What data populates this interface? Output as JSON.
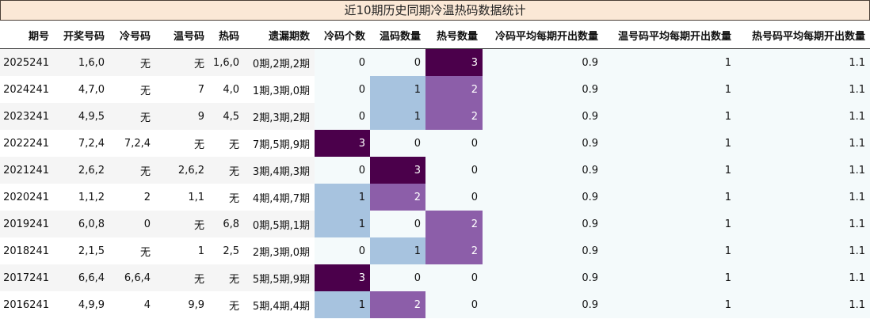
{
  "chart_data": {
    "type": "table",
    "title": "近10期历史同期冷温热码数据统计",
    "columns": [
      "期号",
      "开奖号码",
      "冷号码",
      "温号码",
      "热码",
      "遗漏期数",
      "冷码个数",
      "温码数量",
      "热号数量",
      "冷码平均每期开出数量",
      "温号码平均每期开出数量",
      "热号码平均每期开出数量"
    ],
    "rows": [
      [
        "2025241",
        "1,6,0",
        "无",
        "无",
        "1,6,0",
        "0期,2期,2期",
        0,
        0,
        3,
        "0.9",
        "1",
        "1.1"
      ],
      [
        "2024241",
        "4,7,0",
        "无",
        "7",
        "4,0",
        "1期,3期,0期",
        0,
        1,
        2,
        "0.9",
        "1",
        "1.1"
      ],
      [
        "2023241",
        "4,9,5",
        "无",
        "9",
        "4,5",
        "2期,3期,2期",
        0,
        1,
        2,
        "0.9",
        "1",
        "1.1"
      ],
      [
        "2022241",
        "7,2,4",
        "7,2,4",
        "无",
        "无",
        "7期,5期,9期",
        3,
        0,
        0,
        "0.9",
        "1",
        "1.1"
      ],
      [
        "2021241",
        "2,6,2",
        "无",
        "2,6,2",
        "无",
        "3期,4期,3期",
        0,
        3,
        0,
        "0.9",
        "1",
        "1.1"
      ],
      [
        "2020241",
        "1,1,2",
        "2",
        "1,1",
        "无",
        "4期,4期,7期",
        1,
        2,
        0,
        "0.9",
        "1",
        "1.1"
      ],
      [
        "2019241",
        "6,0,8",
        "0",
        "无",
        "6,8",
        "0期,5期,1期",
        1,
        0,
        2,
        "0.9",
        "1",
        "1.1"
      ],
      [
        "2018241",
        "2,1,5",
        "无",
        "1",
        "2,5",
        "2期,3期,0期",
        0,
        1,
        2,
        "0.9",
        "1",
        "1.1"
      ],
      [
        "2017241",
        "6,6,4",
        "6,6,4",
        "无",
        "无",
        "5期,5期,9期",
        3,
        0,
        0,
        "0.9",
        "1",
        "1.1"
      ],
      [
        "2016241",
        "4,9,9",
        "4",
        "9,9",
        "无",
        "5期,4期,4期",
        1,
        2,
        0,
        "0.9",
        "1",
        "1.1"
      ]
    ],
    "heat_colors": {
      "0": "#f4fafb",
      "1": "#a7c3df",
      "2": "#8c5ea9",
      "3": "#4b004b"
    }
  }
}
